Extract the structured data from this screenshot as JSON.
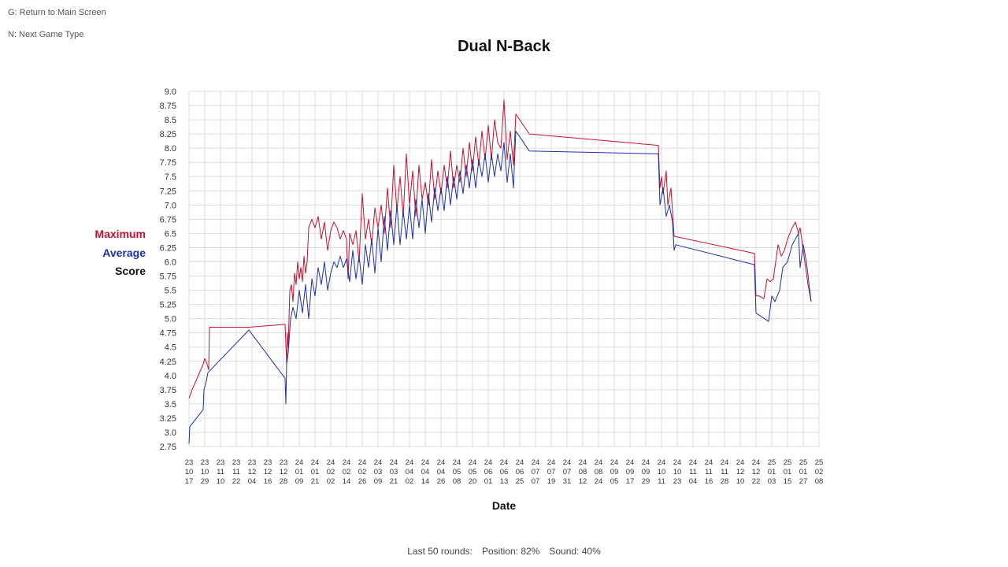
{
  "hints": {
    "return_main": "G: Return to Main Screen",
    "next_game": "N: Next Game Type"
  },
  "title": "Dual N-Back",
  "legend": {
    "maximum": "Maximum",
    "average": "Average",
    "score": "Score"
  },
  "footer": {
    "last_rounds": "Last 50 rounds:",
    "position": "Position: 82%",
    "sound": "Sound: 40%"
  },
  "colors": {
    "maximum": "#c8102e",
    "average": "#1f2fa8",
    "grid": "#dddddd"
  },
  "chart_data": {
    "type": "line",
    "title": "Dual N-Back",
    "xlabel": "Date",
    "ylabel": "Score",
    "ylim": [
      2.75,
      9.0
    ],
    "yticks": [
      "2.75",
      "3.0",
      "3.25",
      "3.5",
      "3.75",
      "4.0",
      "4.25",
      "4.5",
      "4.75",
      "5.0",
      "5.25",
      "5.5",
      "5.75",
      "6.0",
      "6.25",
      "6.5",
      "6.75",
      "7.0",
      "7.25",
      "7.5",
      "7.75",
      "8.0",
      "8.25",
      "8.5",
      "8.75",
      "9.0"
    ],
    "xticks": [
      [
        "23",
        "10",
        "17"
      ],
      [
        "23",
        "10",
        "29"
      ],
      [
        "23",
        "11",
        "10"
      ],
      [
        "23",
        "11",
        "22"
      ],
      [
        "23",
        "12",
        "04"
      ],
      [
        "23",
        "12",
        "16"
      ],
      [
        "23",
        "12",
        "28"
      ],
      [
        "24",
        "01",
        "09"
      ],
      [
        "24",
        "01",
        "21"
      ],
      [
        "24",
        "02",
        "02"
      ],
      [
        "24",
        "02",
        "14"
      ],
      [
        "24",
        "02",
        "26"
      ],
      [
        "24",
        "03",
        "09"
      ],
      [
        "24",
        "03",
        "21"
      ],
      [
        "24",
        "04",
        "02"
      ],
      [
        "24",
        "04",
        "14"
      ],
      [
        "24",
        "04",
        "26"
      ],
      [
        "24",
        "05",
        "08"
      ],
      [
        "24",
        "05",
        "20"
      ],
      [
        "24",
        "06",
        "01"
      ],
      [
        "24",
        "06",
        "13"
      ],
      [
        "24",
        "06",
        "25"
      ],
      [
        "24",
        "07",
        "07"
      ],
      [
        "24",
        "07",
        "19"
      ],
      [
        "24",
        "07",
        "31"
      ],
      [
        "24",
        "08",
        "12"
      ],
      [
        "24",
        "08",
        "24"
      ],
      [
        "24",
        "09",
        "05"
      ],
      [
        "24",
        "09",
        "17"
      ],
      [
        "24",
        "09",
        "29"
      ],
      [
        "24",
        "10",
        "11"
      ],
      [
        "24",
        "10",
        "23"
      ],
      [
        "24",
        "11",
        "04"
      ],
      [
        "24",
        "11",
        "16"
      ],
      [
        "24",
        "11",
        "28"
      ],
      [
        "24",
        "12",
        "10"
      ],
      [
        "24",
        "12",
        "22"
      ],
      [
        "25",
        "01",
        "03"
      ],
      [
        "25",
        "01",
        "15"
      ],
      [
        "25",
        "01",
        "27"
      ],
      [
        "25",
        "02",
        "08"
      ]
    ],
    "grid": true,
    "legend_position": "left",
    "series": [
      {
        "name": "Maximum",
        "color": "#c8102e",
        "points": [
          [
            0.0,
            3.6
          ],
          [
            0.2,
            3.75
          ],
          [
            0.9,
            4.2
          ],
          [
            1.0,
            4.3
          ],
          [
            1.15,
            4.2
          ],
          [
            1.25,
            4.1
          ],
          [
            1.3,
            4.85
          ],
          [
            3.8,
            4.85
          ],
          [
            6.1,
            4.9
          ],
          [
            6.2,
            4.2
          ],
          [
            6.25,
            4.75
          ],
          [
            6.3,
            4.5
          ],
          [
            6.4,
            5.5
          ],
          [
            6.5,
            5.6
          ],
          [
            6.6,
            5.3
          ],
          [
            6.7,
            5.8
          ],
          [
            6.8,
            5.6
          ],
          [
            6.9,
            6.0
          ],
          [
            7.0,
            5.7
          ],
          [
            7.1,
            5.9
          ],
          [
            7.2,
            5.65
          ],
          [
            7.3,
            6.1
          ],
          [
            7.4,
            5.8
          ],
          [
            7.5,
            6.0
          ],
          [
            7.6,
            6.6
          ],
          [
            7.8,
            6.75
          ],
          [
            8.0,
            6.6
          ],
          [
            8.2,
            6.8
          ],
          [
            8.4,
            6.4
          ],
          [
            8.6,
            6.7
          ],
          [
            8.8,
            6.2
          ],
          [
            9.0,
            6.55
          ],
          [
            9.2,
            6.7
          ],
          [
            9.4,
            6.6
          ],
          [
            9.6,
            6.4
          ],
          [
            9.8,
            6.55
          ],
          [
            10.0,
            6.4
          ],
          [
            10.1,
            5.7
          ],
          [
            10.2,
            6.5
          ],
          [
            10.4,
            6.3
          ],
          [
            10.6,
            6.55
          ],
          [
            10.8,
            6.0
          ],
          [
            11.0,
            7.2
          ],
          [
            11.2,
            6.4
          ],
          [
            11.4,
            6.75
          ],
          [
            11.6,
            6.3
          ],
          [
            11.8,
            6.95
          ],
          [
            12.0,
            6.6
          ],
          [
            12.2,
            7.0
          ],
          [
            12.4,
            6.5
          ],
          [
            12.6,
            7.3
          ],
          [
            12.8,
            6.6
          ],
          [
            13.0,
            7.7
          ],
          [
            13.2,
            6.9
          ],
          [
            13.4,
            7.5
          ],
          [
            13.6,
            6.8
          ],
          [
            13.8,
            7.9
          ],
          [
            14.0,
            7.0
          ],
          [
            14.2,
            7.6
          ],
          [
            14.4,
            6.8
          ],
          [
            14.6,
            7.7
          ],
          [
            14.8,
            7.1
          ],
          [
            15.0,
            7.4
          ],
          [
            15.2,
            7.0
          ],
          [
            15.4,
            7.8
          ],
          [
            15.6,
            7.1
          ],
          [
            15.8,
            7.6
          ],
          [
            16.0,
            7.2
          ],
          [
            16.2,
            7.7
          ],
          [
            16.4,
            7.3
          ],
          [
            16.6,
            7.95
          ],
          [
            16.8,
            7.3
          ],
          [
            17.0,
            7.7
          ],
          [
            17.2,
            7.4
          ],
          [
            17.4,
            8.0
          ],
          [
            17.6,
            7.5
          ],
          [
            17.8,
            8.1
          ],
          [
            18.0,
            7.6
          ],
          [
            18.2,
            8.2
          ],
          [
            18.4,
            7.7
          ],
          [
            18.6,
            8.3
          ],
          [
            18.8,
            7.8
          ],
          [
            19.0,
            8.4
          ],
          [
            19.2,
            7.8
          ],
          [
            19.4,
            8.5
          ],
          [
            19.6,
            8.1
          ],
          [
            19.8,
            8.0
          ],
          [
            20.0,
            8.85
          ],
          [
            20.2,
            7.8
          ],
          [
            20.4,
            8.3
          ],
          [
            20.6,
            7.7
          ],
          [
            20.75,
            8.6
          ],
          [
            21.0,
            8.5
          ],
          [
            21.6,
            8.25
          ],
          [
            29.8,
            8.05
          ],
          [
            29.9,
            7.3
          ],
          [
            30.0,
            7.5
          ],
          [
            30.1,
            7.2
          ],
          [
            30.3,
            7.6
          ],
          [
            30.4,
            7.0
          ],
          [
            30.6,
            7.3
          ],
          [
            30.8,
            6.45
          ],
          [
            35.9,
            6.15
          ],
          [
            36.0,
            5.4
          ],
          [
            36.2,
            5.4
          ],
          [
            36.5,
            5.35
          ],
          [
            36.7,
            5.7
          ],
          [
            36.9,
            5.65
          ],
          [
            37.1,
            5.7
          ],
          [
            37.4,
            6.3
          ],
          [
            37.6,
            6.1
          ],
          [
            37.8,
            6.2
          ],
          [
            38.0,
            6.4
          ],
          [
            38.3,
            6.6
          ],
          [
            38.5,
            6.7
          ],
          [
            38.7,
            6.5
          ],
          [
            38.8,
            6.6
          ],
          [
            39.0,
            6.2
          ],
          [
            39.3,
            5.6
          ],
          [
            39.5,
            5.3
          ]
        ]
      },
      {
        "name": "Average",
        "color": "#1f2fa8",
        "points": [
          [
            0.0,
            2.8
          ],
          [
            0.05,
            3.1
          ],
          [
            0.9,
            3.4
          ],
          [
            0.95,
            3.75
          ],
          [
            1.1,
            3.9
          ],
          [
            1.2,
            4.05
          ],
          [
            3.8,
            4.8
          ],
          [
            6.1,
            3.95
          ],
          [
            6.15,
            3.5
          ],
          [
            6.2,
            4.2
          ],
          [
            6.3,
            4.4
          ],
          [
            6.45,
            5.0
          ],
          [
            6.6,
            5.2
          ],
          [
            6.8,
            5.0
          ],
          [
            7.0,
            5.5
          ],
          [
            7.2,
            5.1
          ],
          [
            7.4,
            5.6
          ],
          [
            7.6,
            5.0
          ],
          [
            7.8,
            5.7
          ],
          [
            8.0,
            5.4
          ],
          [
            8.2,
            5.9
          ],
          [
            8.4,
            5.6
          ],
          [
            8.6,
            6.0
          ],
          [
            8.8,
            5.5
          ],
          [
            9.0,
            5.8
          ],
          [
            9.2,
            6.0
          ],
          [
            9.4,
            5.9
          ],
          [
            9.6,
            6.1
          ],
          [
            9.8,
            5.9
          ],
          [
            10.0,
            6.05
          ],
          [
            10.2,
            5.65
          ],
          [
            10.4,
            6.2
          ],
          [
            10.6,
            5.7
          ],
          [
            10.8,
            6.1
          ],
          [
            11.0,
            5.6
          ],
          [
            11.2,
            6.3
          ],
          [
            11.4,
            5.9
          ],
          [
            11.6,
            6.4
          ],
          [
            11.8,
            5.8
          ],
          [
            12.0,
            6.6
          ],
          [
            12.2,
            6.0
          ],
          [
            12.4,
            6.8
          ],
          [
            12.6,
            6.2
          ],
          [
            12.8,
            6.9
          ],
          [
            13.0,
            6.3
          ],
          [
            13.2,
            7.0
          ],
          [
            13.4,
            6.3
          ],
          [
            13.6,
            6.9
          ],
          [
            13.8,
            6.4
          ],
          [
            14.0,
            7.0
          ],
          [
            14.2,
            6.4
          ],
          [
            14.4,
            7.1
          ],
          [
            14.6,
            6.6
          ],
          [
            14.8,
            7.1
          ],
          [
            15.0,
            6.5
          ],
          [
            15.2,
            7.2
          ],
          [
            15.4,
            6.7
          ],
          [
            15.6,
            7.3
          ],
          [
            15.8,
            6.9
          ],
          [
            16.0,
            7.3
          ],
          [
            16.2,
            6.9
          ],
          [
            16.4,
            7.5
          ],
          [
            16.6,
            7.0
          ],
          [
            16.8,
            7.5
          ],
          [
            17.0,
            7.1
          ],
          [
            17.2,
            7.6
          ],
          [
            17.4,
            7.2
          ],
          [
            17.6,
            7.7
          ],
          [
            17.8,
            7.3
          ],
          [
            18.0,
            7.8
          ],
          [
            18.2,
            7.3
          ],
          [
            18.4,
            7.8
          ],
          [
            18.6,
            7.5
          ],
          [
            18.8,
            7.9
          ],
          [
            19.0,
            7.4
          ],
          [
            19.2,
            7.9
          ],
          [
            19.4,
            7.5
          ],
          [
            19.6,
            7.9
          ],
          [
            19.8,
            7.6
          ],
          [
            20.0,
            8.1
          ],
          [
            20.2,
            7.4
          ],
          [
            20.4,
            7.9
          ],
          [
            20.6,
            7.3
          ],
          [
            20.75,
            8.3
          ],
          [
            21.0,
            8.2
          ],
          [
            21.6,
            7.95
          ],
          [
            29.8,
            7.9
          ],
          [
            29.9,
            7.0
          ],
          [
            30.1,
            7.3
          ],
          [
            30.3,
            6.8
          ],
          [
            30.5,
            7.0
          ],
          [
            30.7,
            6.7
          ],
          [
            30.8,
            6.2
          ],
          [
            30.9,
            6.3
          ],
          [
            35.9,
            5.95
          ],
          [
            36.0,
            5.1
          ],
          [
            36.8,
            4.95
          ],
          [
            37.0,
            5.4
          ],
          [
            37.2,
            5.3
          ],
          [
            37.5,
            5.5
          ],
          [
            37.7,
            5.9
          ],
          [
            38.0,
            6.0
          ],
          [
            38.3,
            6.3
          ],
          [
            38.5,
            6.4
          ],
          [
            38.7,
            6.5
          ],
          [
            38.8,
            5.9
          ],
          [
            39.0,
            6.3
          ],
          [
            39.2,
            6.0
          ],
          [
            39.5,
            5.3
          ]
        ]
      }
    ]
  }
}
